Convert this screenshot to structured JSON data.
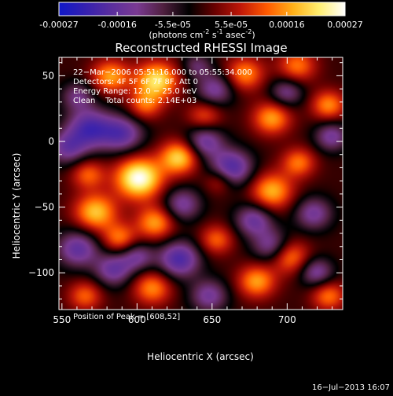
{
  "colorbar": {
    "tick_labels": [
      "-0.00027",
      "-0.00016",
      "-5.5e-05",
      "5.5e-05",
      "0.00016",
      "0.00027"
    ],
    "tick_values": [
      -0.00027,
      -0.00016,
      -5.5e-05,
      5.5e-05,
      0.00016,
      0.00027
    ],
    "range": [
      -0.00027,
      0.00027
    ],
    "unit_label": "(photons cm",
    "unit_exp1": "-2",
    "unit_mid": " s",
    "unit_exp2": "-1",
    "unit_mid2": " asec",
    "unit_exp3": "-2",
    "unit_end": ")",
    "colors": [
      "#1018c8",
      "#3420b0",
      "#5a2e9e",
      "#7a3a92",
      "#502040",
      "#000000",
      "#6a0000",
      "#c01808",
      "#ff5a00",
      "#ffb018",
      "#ffee70",
      "#ffffff"
    ]
  },
  "chart_data": {
    "type": "heatmap",
    "title": "Reconstructed RHESSI Image",
    "xlabel": "Heliocentric X (arcsec)",
    "ylabel": "Heliocentric Y (arcsec)",
    "xlim": [
      548,
      737
    ],
    "ylim": [
      -128,
      64
    ],
    "xticks": [
      550,
      600,
      650,
      700
    ],
    "xtick_labels": [
      "550",
      "600",
      "650",
      "700"
    ],
    "yticks": [
      -100,
      -50,
      0,
      50
    ],
    "ytick_labels": [
      "−100",
      "−50",
      "0",
      "50"
    ],
    "annotations": [
      "22−Mar−2006 05:51:16.000 to 05:55:34.000",
      "Detectors: 4F 5F 6F 7F 8F, Att 0",
      "Energy Range: 12.0 − 25.0 keV",
      "Clean    Total counts: 2.14E+03"
    ],
    "peak_label": "Position of Peak = [608,52]",
    "peak_position": [
      608,
      52
    ],
    "blobs": [
      {
        "x": 601,
        "y": -28,
        "v": 1.0,
        "s": 11
      },
      {
        "x": 628,
        "y": -12,
        "v": 0.75,
        "s": 9
      },
      {
        "x": 613,
        "y": 47,
        "v": 0.8,
        "s": 10
      },
      {
        "x": 582,
        "y": 50,
        "v": 0.6,
        "s": 9
      },
      {
        "x": 605,
        "y": 28,
        "v": 0.45,
        "s": 8
      },
      {
        "x": 572,
        "y": -54,
        "v": 0.7,
        "s": 10
      },
      {
        "x": 567,
        "y": -25,
        "v": 0.45,
        "s": 8
      },
      {
        "x": 612,
        "y": -62,
        "v": 0.6,
        "s": 9
      },
      {
        "x": 588,
        "y": -74,
        "v": 0.5,
        "s": 8
      },
      {
        "x": 672,
        "y": 52,
        "v": 0.55,
        "s": 9
      },
      {
        "x": 707,
        "y": 58,
        "v": 0.5,
        "s": 9
      },
      {
        "x": 728,
        "y": 28,
        "v": 0.55,
        "s": 8
      },
      {
        "x": 690,
        "y": 18,
        "v": 0.6,
        "s": 9
      },
      {
        "x": 708,
        "y": -16,
        "v": 0.5,
        "s": 8
      },
      {
        "x": 690,
        "y": -38,
        "v": 0.65,
        "s": 10
      },
      {
        "x": 702,
        "y": -88,
        "v": 0.55,
        "s": 9
      },
      {
        "x": 680,
        "y": -107,
        "v": 0.6,
        "s": 9
      },
      {
        "x": 653,
        "y": -75,
        "v": 0.45,
        "s": 8
      },
      {
        "x": 610,
        "y": -112,
        "v": 0.55,
        "s": 9
      },
      {
        "x": 565,
        "y": -118,
        "v": 0.45,
        "s": 8
      },
      {
        "x": 728,
        "y": -118,
        "v": 0.5,
        "s": 8
      },
      {
        "x": 655,
        "y": -30,
        "v": 0.35,
        "s": 7
      },
      {
        "x": 645,
        "y": 20,
        "v": 0.4,
        "s": 8
      },
      {
        "x": 568,
        "y": 10,
        "v": -0.7,
        "s": 11
      },
      {
        "x": 553,
        "y": -5,
        "v": -0.5,
        "s": 9
      },
      {
        "x": 590,
        "y": 6,
        "v": -0.6,
        "s": 10
      },
      {
        "x": 645,
        "y": 0,
        "v": -0.55,
        "s": 9
      },
      {
        "x": 663,
        "y": -20,
        "v": -0.7,
        "s": 10
      },
      {
        "x": 630,
        "y": -48,
        "v": -0.5,
        "s": 9
      },
      {
        "x": 678,
        "y": -60,
        "v": -0.55,
        "s": 9
      },
      {
        "x": 718,
        "y": -55,
        "v": -0.5,
        "s": 9
      },
      {
        "x": 560,
        "y": -82,
        "v": -0.6,
        "s": 10
      },
      {
        "x": 628,
        "y": -90,
        "v": -0.7,
        "s": 10
      },
      {
        "x": 690,
        "y": -80,
        "v": -0.5,
        "s": 9
      },
      {
        "x": 584,
        "y": -98,
        "v": -0.55,
        "s": 9
      },
      {
        "x": 600,
        "y": -88,
        "v": -0.45,
        "s": 8
      },
      {
        "x": 652,
        "y": 40,
        "v": -0.5,
        "s": 9
      },
      {
        "x": 700,
        "y": 38,
        "v": -0.45,
        "s": 8
      },
      {
        "x": 730,
        "y": 4,
        "v": -0.5,
        "s": 8
      },
      {
        "x": 720,
        "y": -100,
        "v": -0.5,
        "s": 8
      },
      {
        "x": 648,
        "y": -118,
        "v": -0.5,
        "s": 9
      },
      {
        "x": 560,
        "y": 35,
        "v": -0.4,
        "s": 8
      },
      {
        "x": 640,
        "y": 58,
        "v": -0.35,
        "s": 7
      }
    ]
  },
  "timestamp": "16−Jul−2013 16:07"
}
